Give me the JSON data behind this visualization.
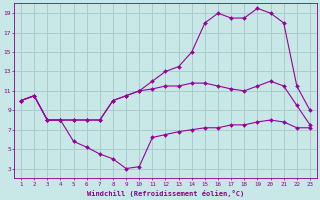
{
  "background_color": "#c8e8e8",
  "grid_color": "#aacccc",
  "line_color": "#990099",
  "marker_color": "#990099",
  "xlabel": "Windchill (Refroidissement éolien,°C)",
  "xlabel_color": "#880088",
  "tick_color": "#880088",
  "xlim": [
    0.5,
    23.5
  ],
  "ylim": [
    2,
    20
  ],
  "xticks": [
    1,
    2,
    3,
    4,
    5,
    6,
    7,
    8,
    9,
    10,
    11,
    12,
    13,
    14,
    15,
    16,
    17,
    18,
    19,
    20,
    21,
    22,
    23
  ],
  "yticks": [
    3,
    5,
    7,
    9,
    11,
    13,
    15,
    17,
    19
  ],
  "line1_x": [
    1,
    2,
    3,
    4,
    5,
    6,
    7,
    8,
    9,
    10,
    11,
    12,
    13,
    14,
    15,
    16,
    17,
    18,
    19,
    20,
    21,
    22,
    23
  ],
  "line1_y": [
    10,
    10.5,
    8.0,
    8.0,
    5.8,
    5.2,
    4.5,
    4.0,
    3.0,
    3.2,
    6.2,
    6.5,
    6.8,
    7.0,
    7.2,
    7.2,
    7.5,
    7.5,
    7.8,
    8.0,
    7.8,
    7.2,
    7.2
  ],
  "line2_x": [
    1,
    2,
    3,
    4,
    5,
    6,
    7,
    8,
    9,
    10,
    11,
    12,
    13,
    14,
    15,
    16,
    17,
    18,
    19,
    20,
    21,
    22,
    23
  ],
  "line2_y": [
    10,
    10.5,
    8.0,
    8.0,
    8.0,
    8.0,
    8.0,
    10.0,
    10.5,
    11.0,
    12.0,
    13.0,
    13.5,
    15.0,
    18.0,
    19.0,
    18.5,
    18.5,
    19.5,
    19.0,
    18.0,
    11.5,
    9.0
  ],
  "line3_x": [
    1,
    2,
    3,
    4,
    5,
    6,
    7,
    8,
    9,
    10,
    11,
    12,
    13,
    14,
    15,
    16,
    17,
    18,
    19,
    20,
    21,
    22,
    23
  ],
  "line3_y": [
    10,
    10.5,
    8.0,
    8.0,
    8.0,
    8.0,
    8.0,
    10.0,
    10.5,
    11.0,
    11.2,
    11.5,
    11.5,
    11.8,
    11.8,
    11.5,
    11.2,
    11.0,
    11.5,
    12.0,
    11.5,
    9.5,
    7.5
  ]
}
